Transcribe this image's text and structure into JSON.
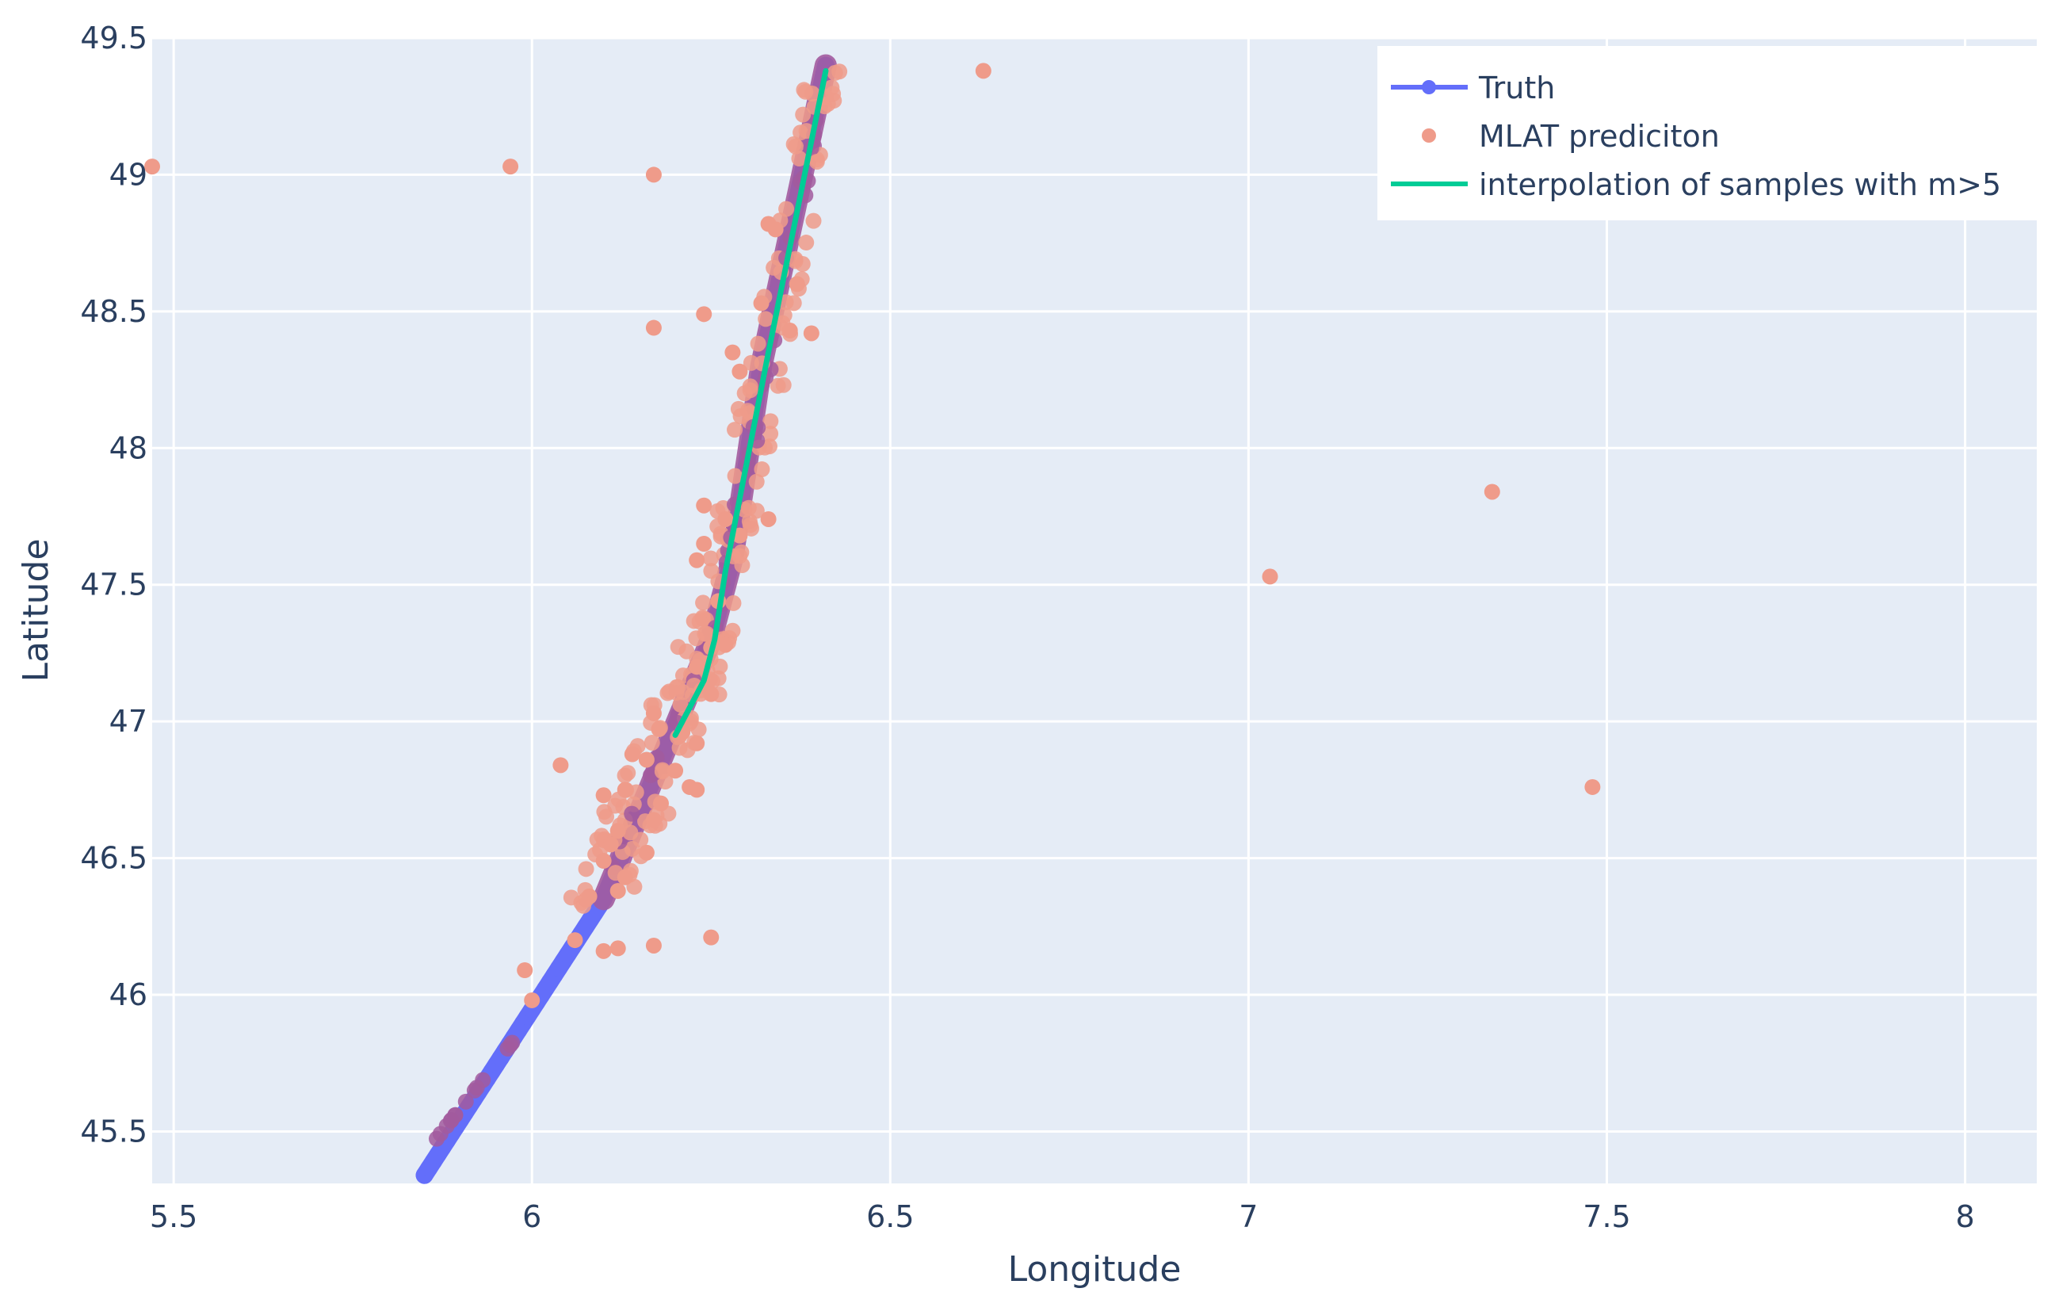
{
  "chart_data": {
    "type": "scatter",
    "xlabel": "Longitude",
    "ylabel": "Latitude",
    "xlim": [
      5.47,
      8.1
    ],
    "ylim": [
      45.31,
      49.5
    ],
    "x_ticks": [
      5.5,
      6,
      6.5,
      7,
      7.5,
      8
    ],
    "x_tick_labels": [
      "5.5",
      "6",
      "6.5",
      "7",
      "7.5",
      "8"
    ],
    "y_ticks": [
      45.5,
      46,
      46.5,
      47,
      47.5,
      48,
      48.5,
      49,
      49.5
    ],
    "y_tick_labels": [
      "45.5",
      "46",
      "46.5",
      "47",
      "47.5",
      "48",
      "48.5",
      "49",
      "49.5"
    ],
    "grid": true,
    "legend_position": "top-right",
    "colors": {
      "plot_background": "#e5ecf6",
      "grid": "#ffffff",
      "truth": "#636efa",
      "mlat": "#ef9b8a",
      "overlap": "#a25b9e",
      "interpolation": "#00cc96",
      "text": "#2a3f5f"
    },
    "series": [
      {
        "name": "Truth",
        "mode": "lines+markers",
        "path": [
          [
            5.85,
            45.34
          ],
          [
            6.1,
            46.35
          ],
          [
            6.25,
            47.3
          ],
          [
            6.28,
            47.6
          ],
          [
            6.32,
            48.3
          ],
          [
            6.41,
            49.4
          ]
        ]
      },
      {
        "name": "MLAT prediciton",
        "mode": "markers",
        "outliers": [
          [
            5.47,
            49.03
          ],
          [
            5.97,
            49.03
          ],
          [
            6.17,
            49.0
          ],
          [
            6.63,
            49.38
          ],
          [
            6.17,
            48.44
          ],
          [
            6.24,
            48.49
          ],
          [
            6.39,
            48.42
          ],
          [
            6.33,
            48.82
          ],
          [
            6.34,
            48.8
          ],
          [
            6.29,
            48.28
          ],
          [
            6.28,
            48.35
          ],
          [
            6.37,
            48.6
          ],
          [
            6.36,
            48.43
          ],
          [
            6.32,
            48.53
          ],
          [
            6.24,
            47.79
          ],
          [
            6.33,
            47.74
          ],
          [
            6.27,
            47.74
          ],
          [
            6.24,
            47.65
          ],
          [
            6.29,
            47.68
          ],
          [
            6.23,
            47.59
          ],
          [
            6.26,
            47.44
          ],
          [
            6.25,
            47.27
          ],
          [
            6.27,
            47.28
          ],
          [
            6.23,
            47.2
          ],
          [
            6.25,
            47.1
          ],
          [
            6.17,
            47.03
          ],
          [
            6.21,
            46.96
          ],
          [
            6.23,
            46.92
          ],
          [
            6.14,
            46.88
          ],
          [
            6.16,
            46.86
          ],
          [
            6.04,
            46.84
          ],
          [
            6.2,
            46.82
          ],
          [
            6.22,
            46.76
          ],
          [
            6.23,
            46.75
          ],
          [
            6.1,
            46.73
          ],
          [
            6.13,
            46.75
          ],
          [
            6.18,
            46.7
          ],
          [
            6.17,
            46.64
          ],
          [
            6.12,
            46.6
          ],
          [
            6.11,
            46.55
          ],
          [
            6.1,
            46.49
          ],
          [
            6.16,
            46.52
          ],
          [
            6.13,
            46.43
          ],
          [
            6.08,
            46.36
          ],
          [
            6.12,
            46.38
          ],
          [
            6.06,
            46.2
          ],
          [
            6.1,
            46.16
          ],
          [
            6.12,
            46.17
          ],
          [
            6.17,
            46.18
          ],
          [
            6.25,
            46.21
          ],
          [
            5.99,
            46.09
          ],
          [
            6.0,
            45.98
          ],
          [
            7.03,
            47.53
          ],
          [
            7.34,
            47.84
          ],
          [
            7.48,
            46.76
          ]
        ],
        "clusters": [
          {
            "path": [
              [
                6.09,
                46.33
              ],
              [
                6.25,
                47.3
              ]
            ],
            "spread": 0.045,
            "count": 110
          },
          {
            "path": [
              [
                6.25,
                47.3
              ],
              [
                6.33,
                48.3
              ]
            ],
            "spread": 0.03,
            "count": 70
          },
          {
            "path": [
              [
                6.33,
                48.3
              ],
              [
                6.41,
                49.38
              ]
            ],
            "spread": 0.025,
            "count": 55
          },
          {
            "path": [
              [
                5.86,
                45.45
              ],
              [
                5.98,
                45.85
              ]
            ],
            "spread": 0.0,
            "count": 14
          }
        ]
      },
      {
        "name": "interpolation of samples with m>5",
        "mode": "lines",
        "path": [
          [
            6.2,
            46.95
          ],
          [
            6.24,
            47.15
          ],
          [
            6.255,
            47.3
          ],
          [
            6.27,
            47.55
          ],
          [
            6.3,
            47.95
          ],
          [
            6.33,
            48.35
          ],
          [
            6.41,
            49.38
          ]
        ]
      }
    ]
  }
}
